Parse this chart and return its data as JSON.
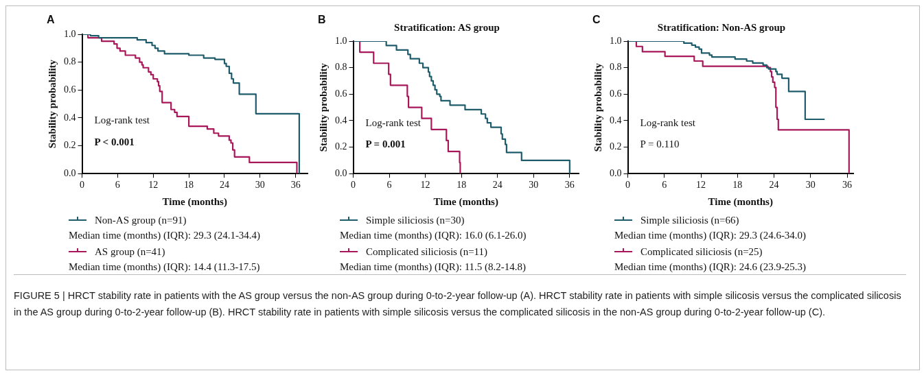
{
  "chart_data": [
    {
      "type": "step",
      "xlabel": "Time (months)",
      "ylabel": "Stability probability",
      "xlim": [
        0,
        38
      ],
      "xticks": [
        0,
        6,
        12,
        18,
        24,
        30,
        36
      ],
      "ylim": [
        0,
        1
      ],
      "yticks": [
        {
          "value": 0,
          "label": "0.0"
        },
        {
          "value": 0.2,
          "label": "0.2"
        },
        {
          "value": 0.4,
          "label": "0.4"
        },
        {
          "value": 0.6,
          "label": "0.6"
        },
        {
          "value": 0.8,
          "label": "0.8"
        },
        {
          "value": 1,
          "label": "1.0"
        }
      ],
      "grid": false,
      "legend": "bottom",
      "line_style": "solid",
      "annotations": [
        "A",
        "Log-rank test",
        "P < 0.001",
        "Median time (months) (IQR): 29.3 (24.1-34.4)",
        "Median time (months) (IQR): 14.4 (11.3-17.5)",
        "FIGURE 5 | HRCT stability rate in patients with the AS group versus the non-AS group during 0-to-2-year follow-up (A). HRCT stability rate in patients with simple silicosis versus the complicated silicosis in the AS group during 0-to-2-year follow-up (B). HRCT stability rate in patients with simple silicosis versus the complicated silicosis in the non-AS group during 0-to-2-year follow-up (C)."
      ],
      "series": [
        {
          "name": "Non-AS group (n=91)",
          "color": "#1e5c6c",
          "x": [
            0,
            1.4,
            2.8,
            9.3,
            10.8,
            11.8,
            12.3,
            12.8,
            13.9,
            18,
            20.5,
            22.4,
            24,
            24.3,
            24.8,
            25.2,
            25.5,
            26.5,
            29.3,
            36.6
          ],
          "values": [
            1,
            0.99,
            0.975,
            0.96,
            0.94,
            0.92,
            0.9,
            0.88,
            0.86,
            0.85,
            0.83,
            0.82,
            0.79,
            0.77,
            0.72,
            0.68,
            0.65,
            0.57,
            0.43,
            0
          ]
        },
        {
          "name": "AS group (n=41)",
          "color": "#a8175a",
          "x": [
            0,
            1,
            3.3,
            5.4,
            5.9,
            6.4,
            7.3,
            9,
            9.7,
            10.1,
            10.3,
            11.2,
            11.6,
            12,
            12.7,
            12.9,
            13.1,
            13.5,
            15,
            15.6,
            16,
            18,
            21.1,
            22.2,
            23,
            24.8,
            25.1,
            25.4,
            25.7,
            28.2,
            36.2
          ],
          "values": [
            1,
            0.975,
            0.95,
            0.93,
            0.9,
            0.88,
            0.85,
            0.83,
            0.8,
            0.78,
            0.76,
            0.73,
            0.71,
            0.68,
            0.66,
            0.63,
            0.59,
            0.51,
            0.46,
            0.44,
            0.41,
            0.34,
            0.32,
            0.29,
            0.27,
            0.24,
            0.22,
            0.17,
            0.12,
            0.08,
            0
          ]
        }
      ]
    },
    {
      "type": "step",
      "title": "Stratification: AS group",
      "xlabel": "Time (months)",
      "ylabel": "Stability probability",
      "xlim": [
        0,
        37.5
      ],
      "xticks": [
        0,
        6,
        12,
        18,
        24,
        30,
        36
      ],
      "ylim": [
        0,
        1
      ],
      "yticks": [
        {
          "value": 0,
          "label": "0.0"
        },
        {
          "value": 0.2,
          "label": "0.2"
        },
        {
          "value": 0.4,
          "label": "0.4"
        },
        {
          "value": 0.6,
          "label": "0.6"
        },
        {
          "value": 0.8,
          "label": "0.8"
        },
        {
          "value": 1,
          "label": "1.0"
        }
      ],
      "grid": false,
      "legend": "bottom",
      "line_style": "solid",
      "annotations": [
        "B",
        "Log-rank test",
        "P = 0.001",
        "Median time (months) (IQR): 16.0 (6.1-26.0)",
        "Median time (months) (IQR): 11.5 (8.2-14.8)"
      ],
      "series": [
        {
          "name": "Simple siliciosis (n=30)",
          "color": "#1e5c6c",
          "x": [
            0,
            5.5,
            7.2,
            9.1,
            9.5,
            11,
            11.6,
            12.5,
            12.7,
            13,
            13.3,
            13.6,
            13.9,
            14.4,
            14.6,
            16.1,
            18.6,
            21.3,
            22,
            22.3,
            22.9,
            24.6,
            24.8,
            25.3,
            25.5,
            28,
            36
          ],
          "values": [
            1,
            0.967,
            0.933,
            0.9,
            0.867,
            0.833,
            0.8,
            0.767,
            0.733,
            0.7,
            0.667,
            0.633,
            0.6,
            0.583,
            0.55,
            0.517,
            0.483,
            0.45,
            0.417,
            0.383,
            0.35,
            0.3,
            0.26,
            0.22,
            0.16,
            0.1,
            0
          ]
        },
        {
          "name": "Complicated siliciosis (n=11)",
          "color": "#a8175a",
          "x": [
            0,
            1.1,
            3.4,
            5.9,
            6.2,
            9,
            9.2,
            11.4,
            13,
            15.5,
            15.8,
            17.7,
            17.8
          ],
          "values": [
            1,
            0.917,
            0.833,
            0.75,
            0.667,
            0.583,
            0.5,
            0.417,
            0.333,
            0.25,
            0.167,
            0.083,
            0
          ]
        }
      ]
    },
    {
      "type": "step",
      "title": "Stratification: Non-AS group",
      "xlabel": "Time (months)",
      "ylabel": "Stability probability",
      "xlim": [
        0,
        37
      ],
      "xticks": [
        0,
        6,
        12,
        18,
        24,
        30,
        36
      ],
      "ylim": [
        0,
        1
      ],
      "yticks": [
        {
          "value": 0,
          "label": "0.0"
        },
        {
          "value": 0.2,
          "label": "0.2"
        },
        {
          "value": 0.4,
          "label": "0.4"
        },
        {
          "value": 0.6,
          "label": "0.6"
        },
        {
          "value": 0.8,
          "label": "0.8"
        },
        {
          "value": 1,
          "label": "1.0"
        }
      ],
      "grid": false,
      "legend": "bottom",
      "line_style": "solid",
      "annotations": [
        "C",
        "Log-rank test",
        "P = 0.110",
        "Median time (months) (IQR): 29.3 (24.6-34.0)",
        "Median time (months) (IQR): 24.6 (23.9-25.3)"
      ],
      "series": [
        {
          "name": "Simple siliciosis (n=66)",
          "color": "#1e5c6c",
          "x": [
            0,
            9.2,
            10.5,
            11.1,
            11.7,
            12.1,
            13.4,
            13.8,
            17.6,
            19.5,
            20.5,
            22.2,
            22.8,
            23.1,
            24.3,
            24.5,
            25.3,
            26.4,
            29.1,
            32.3
          ],
          "values": [
            1,
            0.985,
            0.97,
            0.955,
            0.94,
            0.91,
            0.895,
            0.88,
            0.865,
            0.85,
            0.835,
            0.82,
            0.8,
            0.79,
            0.77,
            0.75,
            0.72,
            0.62,
            0.41,
            0.41
          ]
        },
        {
          "name": "Complicated siliciosis (n=25)",
          "color": "#a8175a",
          "x": [
            0,
            1.4,
            2.4,
            6.1,
            10.9,
            12.3,
            23,
            23.4,
            23.6,
            23.8,
            24.1,
            24.3,
            24.5,
            24.7,
            36.3
          ],
          "values": [
            1,
            0.96,
            0.92,
            0.885,
            0.85,
            0.81,
            0.8,
            0.77,
            0.73,
            0.69,
            0.65,
            0.5,
            0.41,
            0.33,
            0
          ]
        }
      ]
    }
  ]
}
